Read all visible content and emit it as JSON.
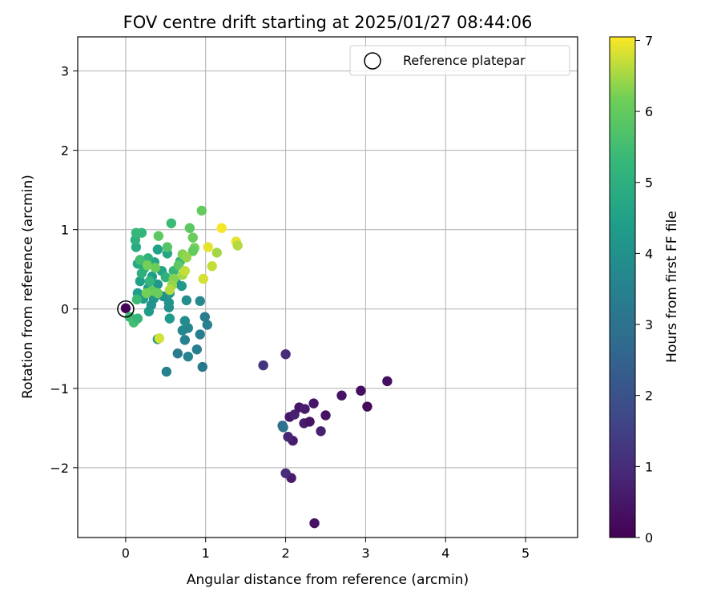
{
  "chart_data": {
    "type": "scatter",
    "title": "FOV centre drift starting at 2025/01/27 08:44:06",
    "xlabel": "Angular distance from reference (arcmin)",
    "ylabel": "Rotation from reference (arcmin)",
    "xlim": [
      -0.6,
      5.65
    ],
    "ylim": [
      -2.88,
      3.43
    ],
    "xticks": [
      0,
      1,
      2,
      3,
      4,
      5
    ],
    "yticks": [
      -2,
      -1,
      0,
      1,
      2,
      3
    ],
    "xtick_labels": [
      "0",
      "1",
      "2",
      "3",
      "4",
      "5"
    ],
    "ytick_labels": [
      "−2",
      "−1",
      "0",
      "1",
      "2",
      "3"
    ],
    "grid": true,
    "legend": {
      "position": "top-right",
      "label": "Reference platepar"
    },
    "colorbar": {
      "label": "Hours from first FF file",
      "colormap": "viridis",
      "range": [
        0,
        7.05
      ],
      "ticks": [
        0,
        1,
        2,
        3,
        4,
        5,
        6,
        7
      ],
      "tick_labels": [
        "0",
        "1",
        "2",
        "3",
        "4",
        "5",
        "6",
        "7"
      ]
    },
    "reference_point": {
      "x": 0,
      "y": 0
    },
    "points": [
      {
        "x": 0.0,
        "y": 0.01,
        "t": 0.05
      },
      {
        "x": 2.36,
        "y": -2.7,
        "t": 0.4
      },
      {
        "x": 2.07,
        "y": -2.13,
        "t": 0.6
      },
      {
        "x": 2.0,
        "y": -2.07,
        "t": 1.0
      },
      {
        "x": 2.09,
        "y": -1.66,
        "t": 0.6
      },
      {
        "x": 2.03,
        "y": -1.61,
        "t": 0.8
      },
      {
        "x": 2.44,
        "y": -1.54,
        "t": 0.7
      },
      {
        "x": 2.23,
        "y": -1.44,
        "t": 0.6
      },
      {
        "x": 2.3,
        "y": -1.42,
        "t": 0.4
      },
      {
        "x": 2.05,
        "y": -1.36,
        "t": 0.5
      },
      {
        "x": 2.11,
        "y": -1.33,
        "t": 0.7
      },
      {
        "x": 2.5,
        "y": -1.34,
        "t": 0.4
      },
      {
        "x": 2.17,
        "y": -1.24,
        "t": 0.5
      },
      {
        "x": 2.24,
        "y": -1.26,
        "t": 0.6
      },
      {
        "x": 2.35,
        "y": -1.19,
        "t": 0.5
      },
      {
        "x": 2.7,
        "y": -1.09,
        "t": 0.4
      },
      {
        "x": 2.94,
        "y": -1.03,
        "t": 0.3
      },
      {
        "x": 3.02,
        "y": -1.23,
        "t": 0.2
      },
      {
        "x": 3.27,
        "y": -0.91,
        "t": 0.3
      },
      {
        "x": 2.0,
        "y": -0.57,
        "t": 1.0
      },
      {
        "x": 1.72,
        "y": -0.71,
        "t": 1.2
      },
      {
        "x": 1.96,
        "y": -1.47,
        "t": 2.8
      },
      {
        "x": 1.97,
        "y": -1.49,
        "t": 3.0
      },
      {
        "x": 0.51,
        "y": -0.79,
        "t": 3.5
      },
      {
        "x": 0.96,
        "y": -0.73,
        "t": 3.2
      },
      {
        "x": 0.65,
        "y": -0.56,
        "t": 3.3
      },
      {
        "x": 0.78,
        "y": -0.6,
        "t": 3.6
      },
      {
        "x": 0.89,
        "y": -0.51,
        "t": 3.4
      },
      {
        "x": 0.74,
        "y": -0.39,
        "t": 3.5
      },
      {
        "x": 0.93,
        "y": -0.32,
        "t": 3.4
      },
      {
        "x": 0.71,
        "y": -0.27,
        "t": 3.7
      },
      {
        "x": 0.78,
        "y": -0.24,
        "t": 3.6
      },
      {
        "x": 0.74,
        "y": -0.15,
        "t": 3.8
      },
      {
        "x": 1.02,
        "y": -0.2,
        "t": 3.5
      },
      {
        "x": 0.99,
        "y": -0.1,
        "t": 3.3
      },
      {
        "x": 0.55,
        "y": -0.12,
        "t": 4.3
      },
      {
        "x": 0.76,
        "y": 0.11,
        "t": 3.9
      },
      {
        "x": 0.93,
        "y": 0.1,
        "t": 3.7
      },
      {
        "x": 0.54,
        "y": 0.02,
        "t": 4.0
      },
      {
        "x": 0.54,
        "y": 0.08,
        "t": 4.1
      },
      {
        "x": 0.4,
        "y": -0.38,
        "t": 4.2
      },
      {
        "x": 0.29,
        "y": -0.03,
        "t": 4.3
      },
      {
        "x": 0.32,
        "y": 0.05,
        "t": 4.1
      },
      {
        "x": 0.15,
        "y": 0.2,
        "t": 4.4
      },
      {
        "x": 0.22,
        "y": 0.13,
        "t": 4.3
      },
      {
        "x": 0.35,
        "y": 0.13,
        "t": 4.1
      },
      {
        "x": 0.47,
        "y": 0.16,
        "t": 4.0
      },
      {
        "x": 0.55,
        "y": 0.2,
        "t": 4.2
      },
      {
        "x": 0.7,
        "y": 0.29,
        "t": 4.3
      },
      {
        "x": 0.63,
        "y": 0.33,
        "t": 4.1
      },
      {
        "x": 0.4,
        "y": 0.31,
        "t": 4.2
      },
      {
        "x": 0.28,
        "y": 0.26,
        "t": 4.3
      },
      {
        "x": 0.18,
        "y": 0.35,
        "t": 4.5
      },
      {
        "x": 0.33,
        "y": 0.41,
        "t": 4.4
      },
      {
        "x": 0.45,
        "y": 0.48,
        "t": 4.6
      },
      {
        "x": 0.23,
        "y": 0.51,
        "t": 4.7
      },
      {
        "x": 0.15,
        "y": 0.57,
        "t": 4.8
      },
      {
        "x": 0.36,
        "y": 0.59,
        "t": 4.6
      },
      {
        "x": 0.52,
        "y": 0.7,
        "t": 4.7
      },
      {
        "x": 0.4,
        "y": 0.75,
        "t": 4.5
      },
      {
        "x": 0.13,
        "y": 0.78,
        "t": 4.8
      },
      {
        "x": 0.12,
        "y": 0.87,
        "t": 5.0
      },
      {
        "x": 0.2,
        "y": 0.96,
        "t": 5.2
      },
      {
        "x": 0.13,
        "y": 0.96,
        "t": 5.3
      },
      {
        "x": 0.28,
        "y": 0.64,
        "t": 5.1
      },
      {
        "x": 0.2,
        "y": 0.45,
        "t": 5.0
      },
      {
        "x": 0.3,
        "y": 0.35,
        "t": 5.2
      },
      {
        "x": 0.5,
        "y": 0.4,
        "t": 5.1
      },
      {
        "x": 0.6,
        "y": 0.48,
        "t": 5.3
      },
      {
        "x": 0.68,
        "y": 0.6,
        "t": 5.2
      },
      {
        "x": 0.57,
        "y": 1.08,
        "t": 5.4
      },
      {
        "x": 0.14,
        "y": 0.12,
        "t": 5.4
      },
      {
        "x": 0.18,
        "y": 0.62,
        "t": 5.5
      },
      {
        "x": 0.05,
        "y": -0.1,
        "t": 5.4
      },
      {
        "x": 0.1,
        "y": -0.17,
        "t": 5.5
      },
      {
        "x": 0.15,
        "y": -0.12,
        "t": 5.3
      },
      {
        "x": 0.41,
        "y": 0.92,
        "t": 5.9
      },
      {
        "x": 0.52,
        "y": 0.78,
        "t": 5.8
      },
      {
        "x": 0.8,
        "y": 1.02,
        "t": 5.9
      },
      {
        "x": 0.95,
        "y": 1.24,
        "t": 6.0
      },
      {
        "x": 0.84,
        "y": 0.9,
        "t": 6.1
      },
      {
        "x": 0.86,
        "y": 0.77,
        "t": 6.2
      },
      {
        "x": 0.84,
        "y": 0.73,
        "t": 6.0
      },
      {
        "x": 0.71,
        "y": 0.69,
        "t": 6.3
      },
      {
        "x": 0.76,
        "y": 0.65,
        "t": 6.4
      },
      {
        "x": 0.66,
        "y": 0.55,
        "t": 5.9
      },
      {
        "x": 0.37,
        "y": 0.52,
        "t": 6.1
      },
      {
        "x": 0.27,
        "y": 0.55,
        "t": 6.2
      },
      {
        "x": 0.33,
        "y": 0.23,
        "t": 6.0
      },
      {
        "x": 0.26,
        "y": 0.2,
        "t": 6.2
      },
      {
        "x": 0.4,
        "y": 0.2,
        "t": 6.1
      },
      {
        "x": 0.6,
        "y": 0.38,
        "t": 6.3
      },
      {
        "x": 0.71,
        "y": 0.43,
        "t": 6.5
      },
      {
        "x": 0.74,
        "y": 0.48,
        "t": 6.7
      },
      {
        "x": 0.58,
        "y": 0.3,
        "t": 6.4
      },
      {
        "x": 0.55,
        "y": 0.24,
        "t": 6.6
      },
      {
        "x": 0.42,
        "y": -0.37,
        "t": 6.8
      },
      {
        "x": 0.97,
        "y": 0.38,
        "t": 6.8
      },
      {
        "x": 1.08,
        "y": 0.54,
        "t": 6.7
      },
      {
        "x": 1.14,
        "y": 0.71,
        "t": 6.5
      },
      {
        "x": 1.03,
        "y": 0.78,
        "t": 6.9
      },
      {
        "x": 1.2,
        "y": 1.02,
        "t": 7.0
      },
      {
        "x": 1.38,
        "y": 0.85,
        "t": 6.9
      },
      {
        "x": 1.4,
        "y": 0.8,
        "t": 6.6
      }
    ]
  }
}
